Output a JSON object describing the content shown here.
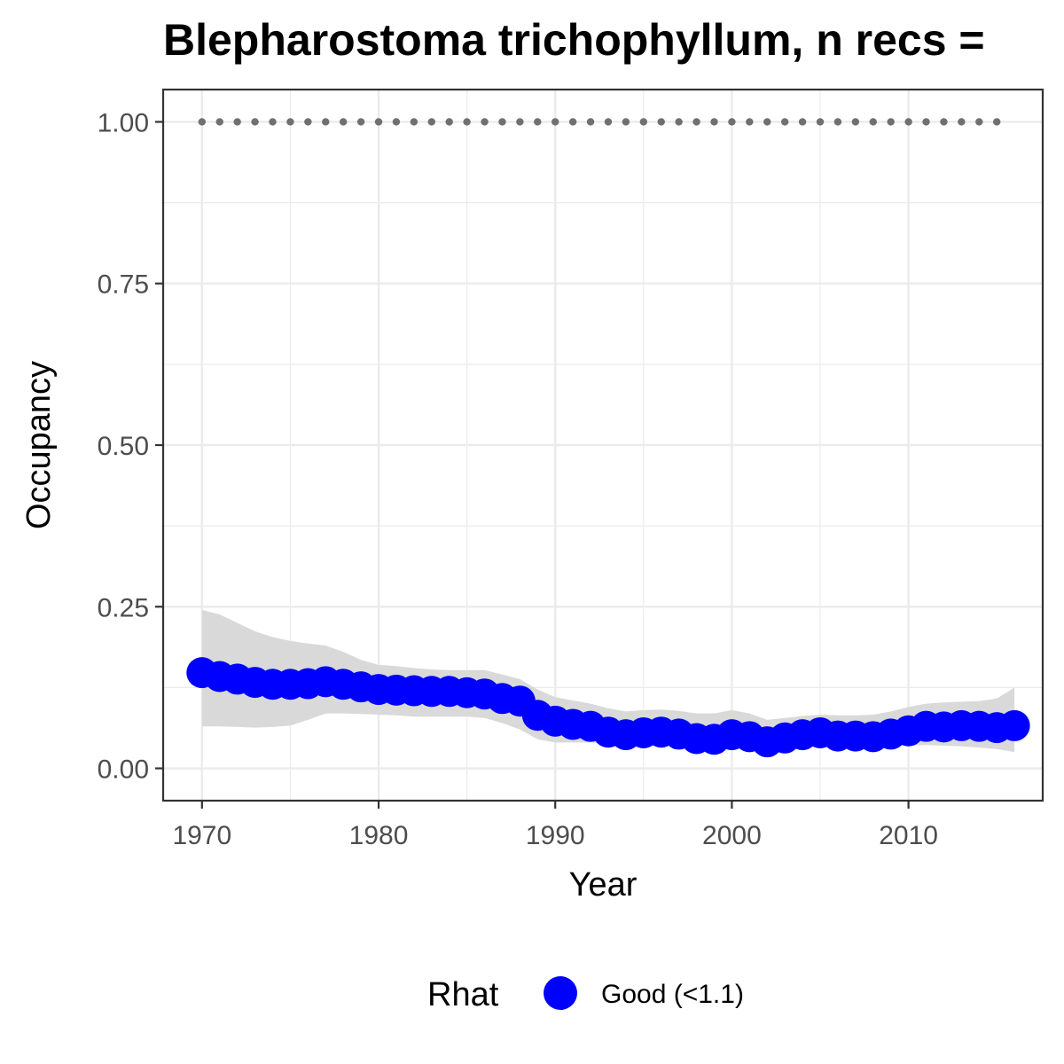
{
  "chart_data": {
    "type": "line",
    "title": "Blepharostoma trichophyllum, n recs =",
    "xlabel": "Year",
    "ylabel": "Occupancy",
    "xlim": [
      1967.8,
      2017.6
    ],
    "ylim": [
      -0.05,
      1.05
    ],
    "x_ticks": [
      1970,
      1980,
      1990,
      2000,
      2010
    ],
    "x_tick_labels": [
      "1970",
      "1980",
      "1990",
      "2000",
      "2010"
    ],
    "y_ticks": [
      0,
      0.25,
      0.5,
      0.75,
      1.0
    ],
    "y_tick_labels": [
      "0.00",
      "0.25",
      "0.50",
      "0.75",
      "1.00"
    ],
    "grid": true,
    "legend": {
      "title": "Rhat",
      "position": "bottom",
      "entries": [
        {
          "label": "Good (<1.1)",
          "color": "#0000ff"
        }
      ]
    },
    "colors": {
      "points": "#0000ff",
      "ribbon": "#d9d9d9",
      "reference_dots": "#707070",
      "grid": "#ebebeb",
      "panel_border": "#333333"
    },
    "series": [
      {
        "years": [
          1970,
          1971,
          1972,
          1973,
          1974,
          1975,
          1976,
          1977,
          1978,
          1979,
          1980,
          1981,
          1982,
          1983,
          1984,
          1985,
          1986,
          1987,
          1988,
          1989,
          1990,
          1991,
          1992,
          1993,
          1994,
          1995,
          1996,
          1997,
          1998,
          1999,
          2000,
          2001,
          2002,
          2003,
          2004,
          2005,
          2006,
          2007,
          2008,
          2009,
          2010,
          2011,
          2012,
          2013,
          2014,
          2015,
          2016
        ],
        "mean": [
          0.148,
          0.142,
          0.138,
          0.133,
          0.13,
          0.13,
          0.131,
          0.134,
          0.13,
          0.126,
          0.122,
          0.121,
          0.12,
          0.119,
          0.119,
          0.117,
          0.115,
          0.108,
          0.104,
          0.082,
          0.073,
          0.068,
          0.065,
          0.056,
          0.052,
          0.055,
          0.056,
          0.053,
          0.046,
          0.045,
          0.052,
          0.049,
          0.041,
          0.047,
          0.052,
          0.055,
          0.05,
          0.05,
          0.049,
          0.053,
          0.058,
          0.065,
          0.064,
          0.066,
          0.065,
          0.063,
          0.066
        ],
        "lower": [
          0.065,
          0.065,
          0.064,
          0.063,
          0.064,
          0.066,
          0.075,
          0.085,
          0.085,
          0.084,
          0.083,
          0.082,
          0.08,
          0.08,
          0.08,
          0.08,
          0.078,
          0.07,
          0.06,
          0.045,
          0.04,
          0.04,
          0.04,
          0.038,
          0.035,
          0.036,
          0.037,
          0.036,
          0.032,
          0.03,
          0.032,
          0.032,
          0.03,
          0.03,
          0.033,
          0.034,
          0.034,
          0.034,
          0.032,
          0.034,
          0.035,
          0.036,
          0.035,
          0.034,
          0.032,
          0.03,
          0.025
        ],
        "upper": [
          0.245,
          0.238,
          0.225,
          0.212,
          0.203,
          0.197,
          0.193,
          0.19,
          0.18,
          0.168,
          0.16,
          0.158,
          0.155,
          0.153,
          0.152,
          0.152,
          0.152,
          0.145,
          0.138,
          0.122,
          0.11,
          0.105,
          0.1,
          0.093,
          0.088,
          0.09,
          0.091,
          0.089,
          0.085,
          0.085,
          0.09,
          0.085,
          0.075,
          0.078,
          0.081,
          0.083,
          0.082,
          0.082,
          0.083,
          0.088,
          0.095,
          0.1,
          0.102,
          0.103,
          0.104,
          0.108,
          0.125
        ]
      },
      {
        "years": [
          1970,
          1971,
          1972,
          1973,
          1974,
          1975,
          1976,
          1977,
          1978,
          1979,
          1980,
          1981,
          1982,
          1983,
          1984,
          1985,
          1986,
          1987,
          1988,
          1989,
          1990,
          1991,
          1992,
          1993,
          1994,
          1995,
          1996,
          1997,
          1998,
          1999,
          2000,
          2001,
          2002,
          2003,
          2004,
          2005,
          2006,
          2007,
          2008,
          2009,
          2010,
          2011,
          2012,
          2013,
          2014,
          2015
        ],
        "values": [
          1,
          1,
          1,
          1,
          1,
          1,
          1,
          1,
          1,
          1,
          1,
          1,
          1,
          1,
          1,
          1,
          1,
          1,
          1,
          1,
          1,
          1,
          1,
          1,
          1,
          1,
          1,
          1,
          1,
          1,
          1,
          1,
          1,
          1,
          1,
          1,
          1,
          1,
          1,
          1,
          1,
          1,
          1,
          1,
          1,
          1
        ]
      }
    ]
  }
}
